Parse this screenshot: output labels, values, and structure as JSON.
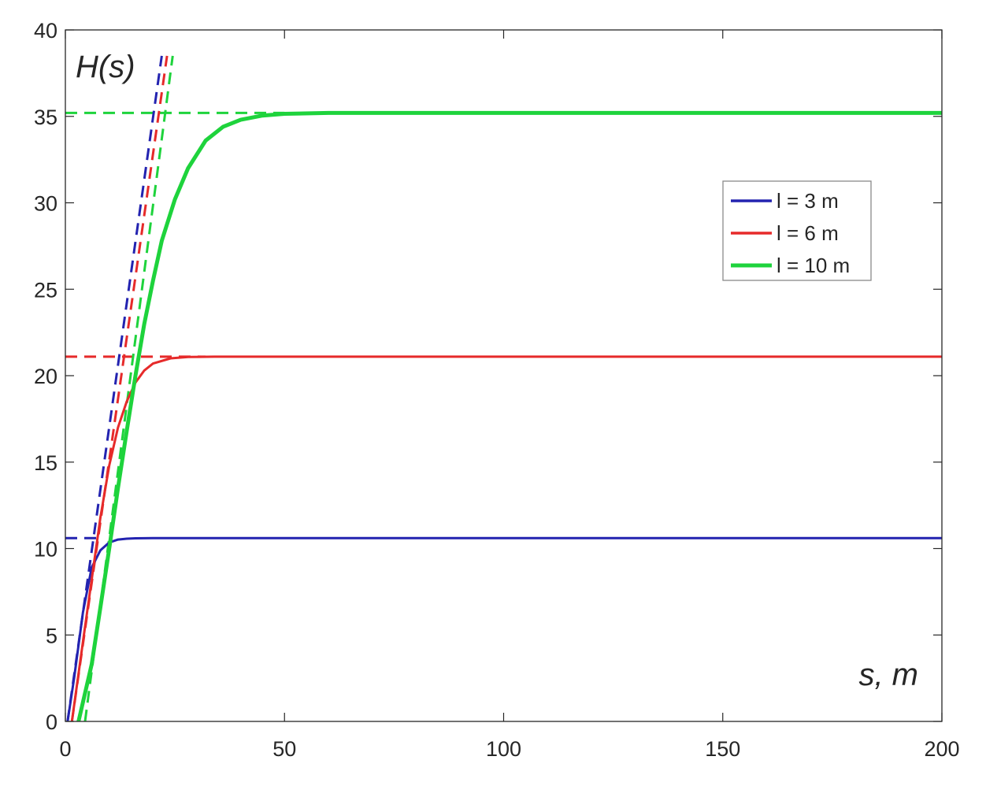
{
  "chart_data": {
    "type": "line",
    "title": "",
    "xlabel": "s, m",
    "ylabel": "H(s)",
    "xlim": [
      0,
      200
    ],
    "ylim": [
      0,
      40
    ],
    "x_ticks": [
      0,
      50,
      100,
      150,
      200
    ],
    "y_ticks": [
      0,
      5,
      10,
      15,
      20,
      25,
      30,
      35,
      40
    ],
    "grid": false,
    "legend_position": "upper-right",
    "series": [
      {
        "name": "l = 3 m",
        "color": "#2323b0",
        "style": "solid",
        "plateau": 10.6,
        "x": [
          0.5,
          2,
          4,
          6,
          8,
          10,
          12,
          14,
          16,
          20,
          30,
          50,
          100,
          150,
          200
        ],
        "values": [
          0,
          2.5,
          6.3,
          8.9,
          9.9,
          10.35,
          10.52,
          10.57,
          10.59,
          10.6,
          10.6,
          10.6,
          10.6,
          10.6,
          10.6
        ]
      },
      {
        "name": "l = 6 m",
        "color": "#e62a2a",
        "style": "solid",
        "plateau": 21.1,
        "x": [
          1.5,
          4,
          6,
          8,
          10,
          12,
          14,
          16,
          18,
          20,
          24,
          28,
          34,
          50,
          100,
          150,
          200
        ],
        "values": [
          0,
          4.6,
          8.2,
          11.8,
          14.8,
          17.0,
          18.5,
          19.6,
          20.3,
          20.7,
          21.0,
          21.08,
          21.1,
          21.1,
          21.1,
          21.1,
          21.1
        ]
      },
      {
        "name": "l = 10 m",
        "color": "#1ed33c",
        "style": "solid",
        "plateau": 35.2,
        "x": [
          3,
          6,
          8,
          10,
          12,
          14,
          16,
          18,
          20,
          22,
          25,
          28,
          32,
          36,
          40,
          45,
          50,
          60,
          100,
          150,
          200
        ],
        "values": [
          0,
          3.3,
          6.6,
          10.0,
          13.5,
          16.8,
          20.0,
          23.0,
          25.5,
          27.8,
          30.2,
          32.0,
          33.6,
          34.4,
          34.8,
          35.05,
          35.15,
          35.2,
          35.2,
          35.2,
          35.2
        ]
      },
      {
        "name": "l = 3 m (asymptote)",
        "color": "#2323b0",
        "style": "dashed",
        "x": [
          0,
          8
        ],
        "values": [
          10.6,
          10.6
        ]
      },
      {
        "name": "l = 6 m (asymptote)",
        "color": "#e62a2a",
        "style": "dashed",
        "x": [
          0,
          32
        ],
        "values": [
          21.1,
          21.1
        ]
      },
      {
        "name": "l = 10 m (asymptote)",
        "color": "#1ed33c",
        "style": "dashed",
        "x": [
          0,
          50
        ],
        "values": [
          35.2,
          35.2
        ]
      },
      {
        "name": "l = 3 m (initial slope)",
        "color": "#2323b0",
        "style": "dashed",
        "x": [
          0.5,
          22
        ],
        "values": [
          0,
          38.5
        ]
      },
      {
        "name": "l = 6 m (initial slope)",
        "color": "#e62a2a",
        "style": "dashed",
        "x": [
          1.5,
          23.2
        ],
        "values": [
          0,
          38.5
        ]
      },
      {
        "name": "l = 10 m (initial slope)",
        "color": "#1ed33c",
        "style": "dashed",
        "x": [
          4.5,
          24.5
        ],
        "values": [
          0,
          38.5
        ]
      }
    ],
    "legend": [
      {
        "label": "l = 3 m",
        "color": "#2323b0"
      },
      {
        "label": "l = 6 m",
        "color": "#e62a2a"
      },
      {
        "label": "l = 10 m",
        "color": "#1ed33c"
      }
    ]
  }
}
